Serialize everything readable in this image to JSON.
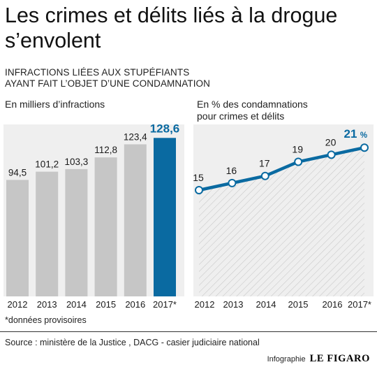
{
  "title": "Les crimes et délits liés à la drogue s’envolent",
  "subtitle_line1": "INFRACTIONS LIÉES AUX STUPÉFIANTS",
  "subtitle_line2": "AYANT FAIT L’OBJET D’UNE CONDAMNATION",
  "footnote": "*données provisoires",
  "source": "Source : ministère de la Justice , DACG - casier judiciaire national",
  "credit_label": "Infographie",
  "credit_brand": "LE FIGARO",
  "colors": {
    "bar": "#c6c6c6",
    "highlight": "#0a6aa1",
    "panel": "#efefef",
    "hatch": "#c9c9c9"
  },
  "chart_data": [
    {
      "type": "bar",
      "title": "En milliers d’infractions",
      "categories": [
        "2012",
        "2013",
        "2014",
        "2015",
        "2016",
        "2017*"
      ],
      "values": [
        94.5,
        101.2,
        103.3,
        112.8,
        123.4,
        128.6
      ],
      "value_labels": [
        "94,5",
        "101,2",
        "103,3",
        "112,8",
        "123,4",
        "128,6"
      ],
      "highlight_index": 5,
      "ylim": [
        0,
        135
      ]
    },
    {
      "type": "line",
      "title_line1": "En % des condamnations",
      "title_line2": "pour crimes et délits",
      "x": [
        "2012",
        "2013",
        "2014",
        "2015",
        "2016",
        "2017*"
      ],
      "values": [
        15,
        16,
        17,
        19,
        20,
        21
      ],
      "value_labels": [
        "15",
        "16",
        "17",
        "19",
        "20",
        "21"
      ],
      "last_unit": "%",
      "highlight_index": 5,
      "ylim": [
        0,
        22.5
      ]
    }
  ]
}
